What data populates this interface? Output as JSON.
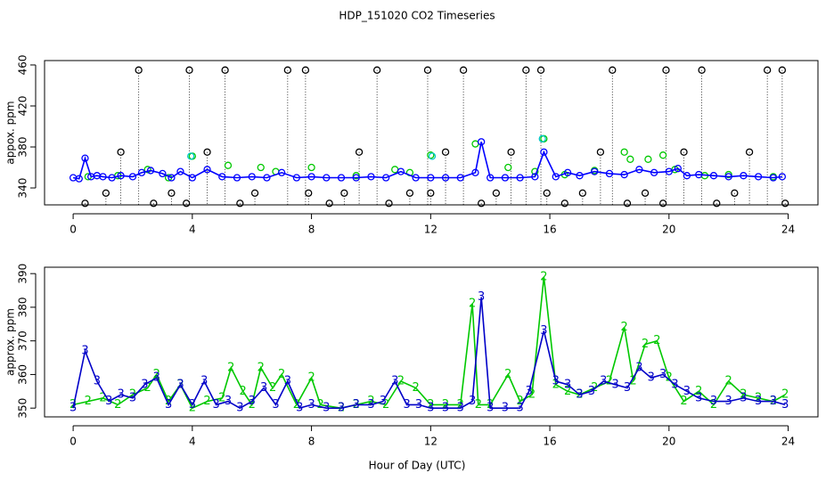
{
  "chart_data": [
    {
      "type": "scatter",
      "title": "HDP_151020  CO2 Timeseries",
      "y_label": "appox. ppm",
      "xlim": [
        -0.96,
        25.0
      ],
      "xticks": [
        0,
        4,
        8,
        12,
        16,
        20,
        24
      ],
      "ylim": [
        323.5,
        464.3
      ],
      "yticks": [
        340,
        380,
        420,
        460
      ],
      "series": [
        {
          "color": "#000000",
          "stems": true,
          "x": [
            0.4,
            1.1,
            1.6,
            2.2,
            2.7,
            3.3,
            3.8,
            3.9,
            4.5,
            5.1,
            5.6,
            6.1,
            7.2,
            7.8,
            7.9,
            8.6,
            9.1,
            9.6,
            10.2,
            10.6,
            11.3,
            11.9,
            12.0,
            12.5,
            13.1,
            13.7,
            14.2,
            14.7,
            15.2,
            15.7,
            15.9,
            16.5,
            17.1,
            17.7,
            18.1,
            18.6,
            19.2,
            19.8,
            19.9,
            20.5,
            21.1,
            21.6,
            22.2,
            22.7,
            23.3,
            23.8,
            23.9
          ],
          "values": [
            325,
            335,
            375,
            455,
            325,
            335,
            325,
            455,
            375,
            455,
            325,
            335,
            455,
            455,
            335,
            325,
            335,
            375,
            455,
            325,
            335,
            455,
            335,
            375,
            455,
            325,
            335,
            375,
            455,
            455,
            335,
            325,
            335,
            375,
            455,
            325,
            335,
            325,
            455,
            375,
            455,
            325,
            335,
            375,
            455,
            455,
            325
          ]
        },
        {
          "color": "#00c800",
          "x": [
            0.5,
            1.5,
            2.5,
            3.2,
            4,
            5.2,
            6.3,
            6.8,
            8,
            9.5,
            10.8,
            11.3,
            12,
            13.5,
            14.6,
            15.5,
            15.8,
            16.5,
            17.5,
            18.5,
            18.7,
            19.3,
            19.8,
            20.2,
            21.2,
            22,
            23.5
          ],
          "values": [
            351,
            352,
            358,
            350,
            371,
            362,
            360,
            356,
            360,
            352,
            358,
            355,
            372,
            383,
            360,
            356,
            388,
            353,
            357,
            375,
            368,
            368,
            372,
            358,
            352,
            353,
            351
          ]
        },
        {
          "color": "#00c8c8",
          "x": [
            3.95,
            12.05,
            15.75
          ],
          "values": [
            371,
            371,
            388
          ]
        },
        {
          "color": "#0000ff",
          "line": true,
          "x": [
            0,
            0.2,
            0.4,
            0.6,
            0.8,
            1,
            1.3,
            1.6,
            2,
            2.3,
            2.6,
            3,
            3.3,
            3.6,
            4,
            4.5,
            5,
            5.5,
            6,
            6.5,
            7,
            7.5,
            8,
            8.5,
            9,
            9.5,
            10,
            10.5,
            11,
            11.5,
            12,
            12.5,
            13,
            13.5,
            13.7,
            14,
            14.5,
            15,
            15.5,
            15.8,
            16.2,
            16.6,
            17,
            17.5,
            18,
            18.5,
            19,
            19.5,
            20,
            20.3,
            20.6,
            21,
            21.5,
            22,
            22.5,
            23,
            23.5,
            23.8
          ],
          "values": [
            350,
            349,
            369,
            351,
            352,
            351,
            350,
            352,
            351,
            355,
            357,
            354,
            350,
            356,
            350,
            358,
            351,
            350,
            351,
            350,
            355,
            350,
            351,
            350,
            350,
            350,
            351,
            350,
            356,
            350,
            350,
            350,
            350,
            355,
            385,
            350,
            350,
            350,
            351,
            375,
            351,
            355,
            352,
            356,
            354,
            353,
            358,
            355,
            356,
            359,
            352,
            353,
            352,
            351,
            352,
            351,
            350,
            351
          ]
        }
      ]
    },
    {
      "type": "line",
      "y_label": "approx. ppm",
      "x_label": "Hour of Day (UTC)",
      "xlim": [
        -0.96,
        25.0
      ],
      "xticks": [
        0,
        4,
        8,
        12,
        16,
        20,
        24
      ],
      "ylim": [
        347.4,
        391.9
      ],
      "yticks": [
        350,
        360,
        370,
        380,
        390
      ],
      "series": [
        {
          "color": "#00c800",
          "marker": "2",
          "x": [
            0,
            0.5,
            1,
            1.5,
            2,
            2.5,
            2.8,
            3.2,
            3.6,
            4,
            4.5,
            5,
            5.3,
            5.7,
            6,
            6.3,
            6.7,
            7,
            7.5,
            8,
            8.3,
            9,
            9.5,
            10,
            10.5,
            11,
            11.5,
            12,
            12.5,
            13,
            13.4,
            13.6,
            14,
            14.6,
            15,
            15.4,
            15.8,
            16.2,
            16.6,
            17,
            17.5,
            18,
            18.5,
            18.8,
            19.2,
            19.6,
            20,
            20.5,
            21,
            21.5,
            22,
            22.5,
            23,
            23.5,
            23.9
          ],
          "values": [
            351,
            352,
            353,
            351,
            354,
            356,
            360,
            352,
            357,
            350,
            352,
            353,
            362,
            355,
            351,
            362,
            356,
            360,
            351,
            359,
            351,
            350,
            351,
            352,
            351,
            358,
            356,
            351,
            351,
            351,
            381,
            351,
            351,
            360,
            352,
            354,
            389,
            357,
            355,
            354,
            356,
            358,
            374,
            358,
            369,
            370,
            359,
            352,
            355,
            351,
            358,
            354,
            353,
            352,
            354
          ]
        },
        {
          "color": "#0000c8",
          "marker": "3",
          "x": [
            0,
            0.4,
            0.8,
            1.2,
            1.6,
            2,
            2.4,
            2.8,
            3.2,
            3.6,
            4,
            4.4,
            4.8,
            5.2,
            5.6,
            6,
            6.4,
            6.8,
            7.2,
            7.6,
            8,
            8.5,
            9,
            9.5,
            10,
            10.4,
            10.8,
            11.2,
            11.6,
            12,
            12.5,
            13,
            13.4,
            13.7,
            14,
            14.5,
            15,
            15.3,
            15.8,
            16.2,
            16.6,
            17,
            17.4,
            17.8,
            18.2,
            18.6,
            19,
            19.4,
            19.8,
            20.2,
            20.6,
            21,
            21.5,
            22,
            22.5,
            23,
            23.5,
            23.9
          ],
          "values": [
            350,
            367,
            358,
            352,
            354,
            353,
            357,
            359,
            351,
            357,
            351,
            358,
            351,
            352,
            350,
            352,
            356,
            351,
            358,
            350,
            351,
            350,
            350,
            351,
            351,
            352,
            358,
            351,
            351,
            350,
            350,
            350,
            352,
            383,
            350,
            350,
            350,
            355,
            373,
            358,
            357,
            354,
            355,
            358,
            357,
            356,
            362,
            359,
            360,
            357,
            355,
            353,
            352,
            352,
            353,
            352,
            352,
            351
          ]
        }
      ]
    }
  ]
}
